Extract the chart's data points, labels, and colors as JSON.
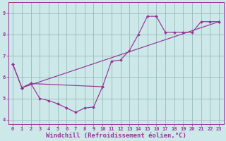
{
  "xlabel": "Windchill (Refroidissement éolien,°C)",
  "xlim": [
    -0.5,
    23.5
  ],
  "ylim": [
    3.8,
    9.5
  ],
  "yticks": [
    4,
    5,
    6,
    7,
    8,
    9
  ],
  "xticks": [
    0,
    1,
    2,
    3,
    4,
    5,
    6,
    7,
    8,
    9,
    10,
    11,
    12,
    13,
    14,
    15,
    16,
    17,
    18,
    19,
    20,
    21,
    22,
    23
  ],
  "bg_color": "#cce8e8",
  "line_color": "#993399",
  "grid_color": "#99bbbb",
  "curve1_x": [
    0,
    1,
    2,
    3,
    4,
    5,
    6,
    7,
    8,
    9,
    10
  ],
  "curve1_y": [
    6.6,
    5.5,
    5.7,
    5.0,
    4.9,
    4.75,
    4.55,
    4.35,
    4.55,
    4.6,
    5.55
  ],
  "curve2_x": [
    0,
    1,
    2,
    10,
    11,
    12,
    13,
    14,
    15,
    16,
    17,
    18,
    19,
    20,
    21,
    22,
    23
  ],
  "curve2_y": [
    6.6,
    5.5,
    5.7,
    5.55,
    6.75,
    6.8,
    7.25,
    8.0,
    8.85,
    8.85,
    8.1,
    8.1,
    8.1,
    8.1,
    8.6,
    8.6,
    8.6
  ],
  "curve3_x": [
    1,
    23
  ],
  "curve3_y": [
    5.5,
    8.6
  ],
  "font_color": "#993399",
  "tick_fontsize": 5.0,
  "xlabel_fontsize": 6.5
}
